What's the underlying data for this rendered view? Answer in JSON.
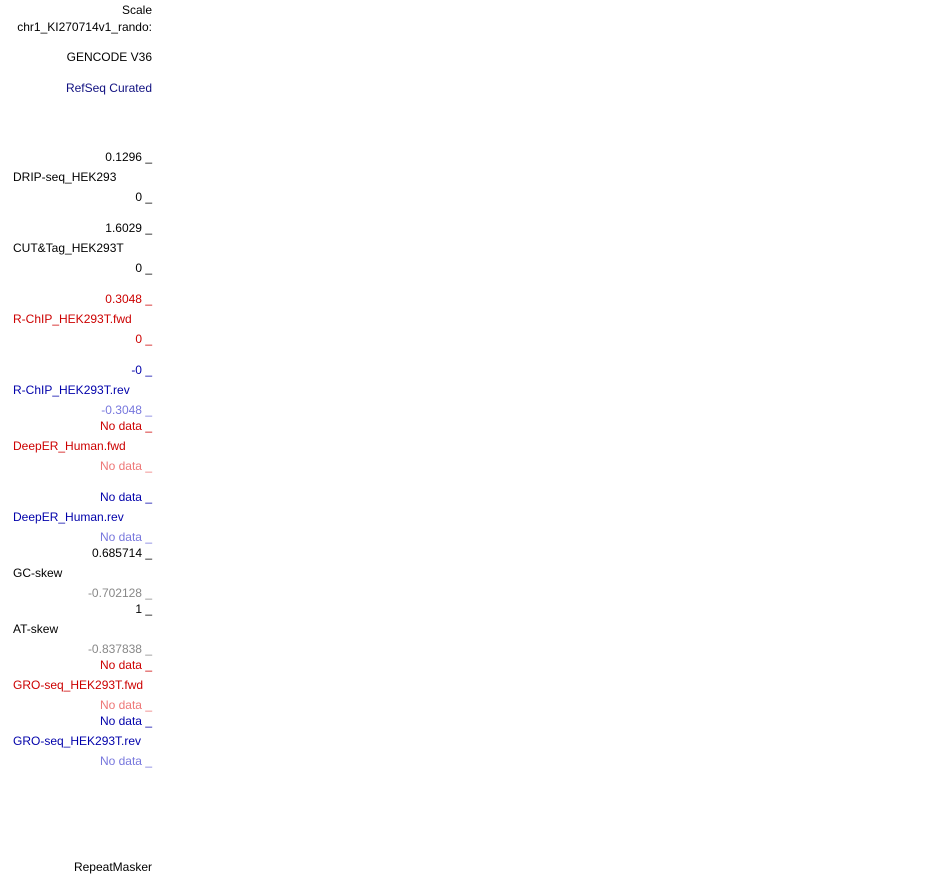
{
  "header": {
    "scale": "Scale",
    "chrom": "chr1_KI270714v1_rando:"
  },
  "tracks": [
    {
      "name": "GENCODE V36"
    },
    {
      "name": "RefSeq Curated"
    },
    {
      "name": "DRIP-seq_HEK293",
      "top": "0.1296 _",
      "bottom": "0 _"
    },
    {
      "name": "CUT&Tag_HEK293T",
      "top": "1.6029 _",
      "bottom": "0 _"
    },
    {
      "name": "R-ChIP_HEK293T.fwd",
      "top": "0.3048 _",
      "bottom": "0 _"
    },
    {
      "name": "R-ChIP_HEK293T.rev",
      "top": "-0 _",
      "bottom": "-0.3048 _"
    },
    {
      "name": "DeepER_Human.fwd",
      "top": "No data _",
      "bottom": "No data _"
    },
    {
      "name": "DeepER_Human.rev",
      "top": "No data _",
      "bottom": "No data _"
    },
    {
      "name": "GC-skew",
      "top": "0.685714 _",
      "bottom": "-0.702128 _"
    },
    {
      "name": "AT-skew",
      "top": "1 _",
      "bottom": "-0.837838 _"
    },
    {
      "name": "GRO-seq_HEK293T.fwd",
      "top": "No data _",
      "bottom": "No data _"
    },
    {
      "name": "GRO-seq_HEK293T.rev",
      "top": "No data _",
      "bottom": "No data _"
    },
    {
      "name": "RepeatMasker"
    }
  ]
}
